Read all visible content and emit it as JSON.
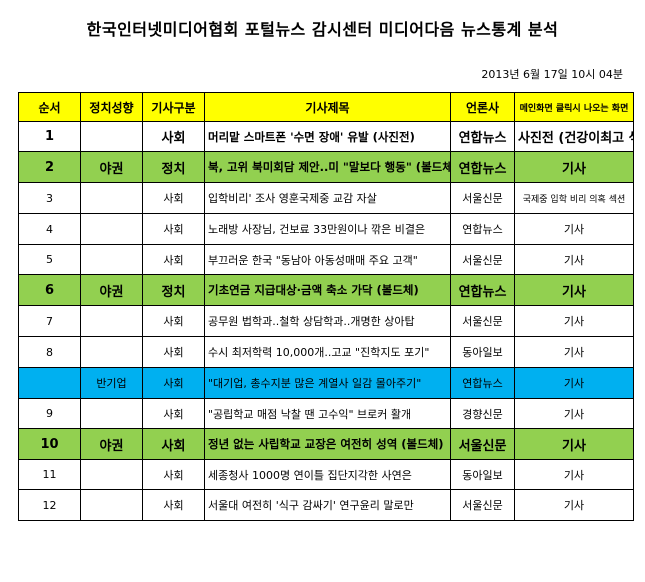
{
  "header": {
    "title": "한국인터넷미디어협회 포털뉴스 감시센터 미디어다음 뉴스통계 분석",
    "timestamp": "2013년 6월 17일 10시 04분"
  },
  "table": {
    "columns": [
      "순서",
      "정치성향",
      "기사구분",
      "기사제목",
      "언론사",
      "메인화면 클릭시 나오는 화면"
    ],
    "rows": [
      {
        "num": "1",
        "leaning": "",
        "category": "사회",
        "title": "머리맡 스마트폰 '수면 장애' 유발 (사진전)",
        "press": "연합뉴스",
        "location": "사진전 (건강이최고 섹션)",
        "style": "bold",
        "color": ""
      },
      {
        "num": "2",
        "leaning": "야권",
        "category": "정치",
        "title": "북, 고위 북미회담 제안..미 \"말보다 행동\" (볼드체)",
        "press": "연합뉴스",
        "location": "기사",
        "style": "bold",
        "color": "green"
      },
      {
        "num": "3",
        "leaning": "",
        "category": "사회",
        "title": "입학비리' 조사 영훈국제중 교감 자살",
        "press": "서울신문",
        "location": "국제중 입학 비리 의혹 섹션",
        "style": "normal",
        "color": ""
      },
      {
        "num": "4",
        "leaning": "",
        "category": "사회",
        "title": "노래방 사장님, 건보료 33만원이나 깎은 비결은",
        "press": "연합뉴스",
        "location": "기사",
        "style": "normal",
        "color": ""
      },
      {
        "num": "5",
        "leaning": "",
        "category": "사회",
        "title": "부끄러운 한국 \"동남아 아동성매매 주요 고객\"",
        "press": "서울신문",
        "location": "기사",
        "style": "normal",
        "color": ""
      },
      {
        "num": "6",
        "leaning": "야권",
        "category": "정치",
        "title": "기초연금 지급대상·금액 축소 가닥 (볼드체)",
        "press": "연합뉴스",
        "location": "기사",
        "style": "bold",
        "color": "green"
      },
      {
        "num": "7",
        "leaning": "",
        "category": "사회",
        "title": "공무원 법학과..철학 상담학과..개명한 상아탑",
        "press": "서울신문",
        "location": "기사",
        "style": "normal",
        "color": ""
      },
      {
        "num": "8",
        "leaning": "",
        "category": "사회",
        "title": "수시 최저학력 10,000개..고교 \"진학지도 포기\"",
        "press": "동아일보",
        "location": "기사",
        "style": "normal",
        "color": ""
      },
      {
        "num": "",
        "leaning": "반기업",
        "category": "사회",
        "title": "\"대기업, 총수지분 많은 계열사 일감 몰아주기\"",
        "press": "연합뉴스",
        "location": "기사",
        "style": "normal",
        "color": "blue"
      },
      {
        "num": "9",
        "leaning": "",
        "category": "사회",
        "title": "\"공립학교 매점 낙찰 땐 고수익\" 브로커 활개",
        "press": "경향신문",
        "location": "기사",
        "style": "normal",
        "color": ""
      },
      {
        "num": "10",
        "leaning": "야권",
        "category": "사회",
        "title": "정년 없는 사립학교 교장은 여전히 성역 (볼드체)",
        "press": "서울신문",
        "location": "기사",
        "style": "bold",
        "color": "green"
      },
      {
        "num": "11",
        "leaning": "",
        "category": "사회",
        "title": "세종청사 1000명 연이틀 집단지각한 사연은",
        "press": "동아일보",
        "location": "기사",
        "style": "normal",
        "color": ""
      },
      {
        "num": "12",
        "leaning": "",
        "category": "사회",
        "title": "서울대 여전히 '식구 감싸기' 연구윤리 말로만",
        "press": "서울신문",
        "location": "기사",
        "style": "normal",
        "color": ""
      }
    ]
  },
  "colors": {
    "header_bg": "#ffff00",
    "highlight_green": "#92d050",
    "highlight_blue": "#00b0f0"
  }
}
